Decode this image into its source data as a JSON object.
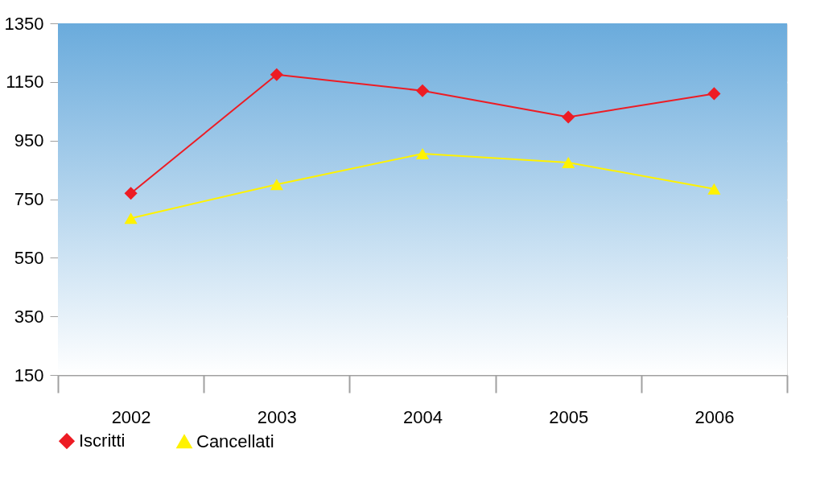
{
  "chart_data": {
    "type": "line",
    "categories": [
      "2002",
      "2003",
      "2004",
      "2005",
      "2006"
    ],
    "series": [
      {
        "name": "Iscritti",
        "color": "#ed1c24",
        "marker": "diamond",
        "values": [
          770,
          1175,
          1120,
          1030,
          1110
        ]
      },
      {
        "name": "Cancellati",
        "color": "#fff200",
        "marker": "triangle",
        "values": [
          685,
          800,
          905,
          875,
          785
        ]
      }
    ],
    "ylim": [
      150,
      1350
    ],
    "yticks": [
      150,
      350,
      550,
      750,
      950,
      1150,
      1350
    ],
    "grid": "y",
    "legend": "bottom",
    "line_style": "solid"
  }
}
